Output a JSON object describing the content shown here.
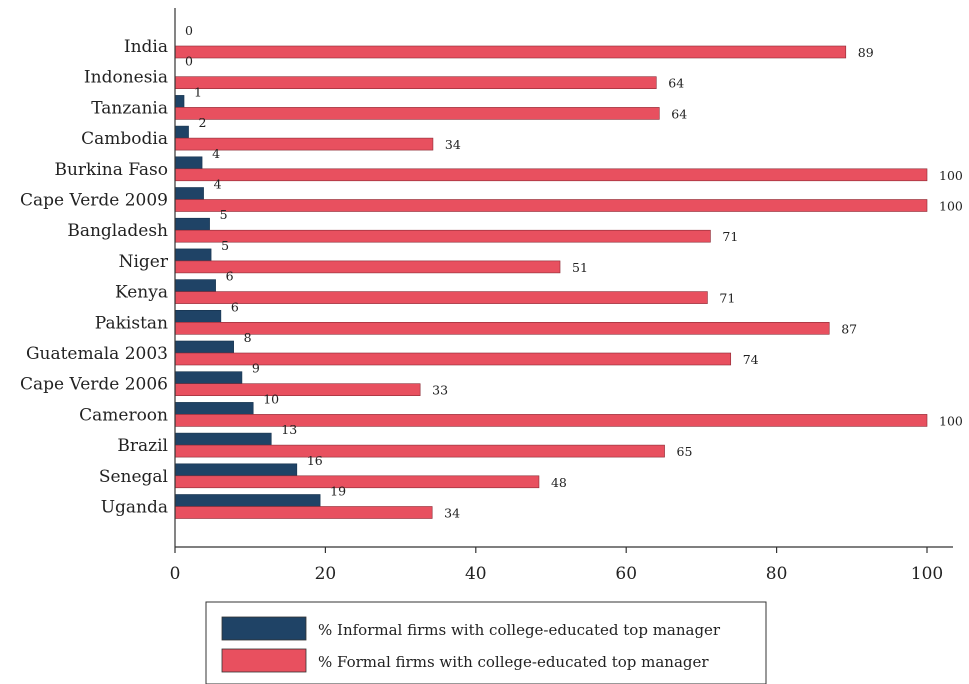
{
  "chart_data": {
    "type": "bar",
    "orientation": "horizontal",
    "categories": [
      "India",
      "Indonesia",
      "Tanzania",
      "Cambodia",
      "Burkina Faso",
      "Cape Verde 2009",
      "Bangladesh",
      "Niger",
      "Kenya",
      "Pakistan",
      "Guatemala 2003",
      "Cape Verde 2006",
      "Cameroon",
      "Brazil",
      "Senegal",
      "Uganda"
    ],
    "series": [
      {
        "name": "% Informal firms with college-educated top manager",
        "color": "#1f4366",
        "values": [
          0,
          0,
          1,
          2,
          4,
          4,
          5,
          5,
          6,
          6,
          8,
          9,
          10,
          13,
          16,
          19
        ],
        "plotted": [
          0,
          0,
          1.2,
          1.8,
          3.6,
          3.8,
          4.6,
          4.8,
          5.4,
          6.1,
          7.8,
          8.9,
          10.4,
          12.8,
          16.2,
          19.3
        ]
      },
      {
        "name": "% Formal firms with college-educated top manager",
        "color": "#e8505f",
        "values": [
          89,
          64,
          64,
          34,
          100,
          100,
          71,
          51,
          71,
          87,
          74,
          33,
          100,
          65,
          48,
          34
        ],
        "plotted": [
          89.2,
          64,
          64.4,
          34.3,
          100,
          100,
          71.2,
          51.2,
          70.8,
          87,
          73.9,
          32.6,
          100,
          65.1,
          48.4,
          34.2
        ]
      }
    ],
    "x_ticks": [
      "0",
      "20",
      "40",
      "60",
      "80",
      "100"
    ],
    "xlim": [
      0,
      103.5
    ],
    "grid": false,
    "legend": "bottom-center"
  }
}
